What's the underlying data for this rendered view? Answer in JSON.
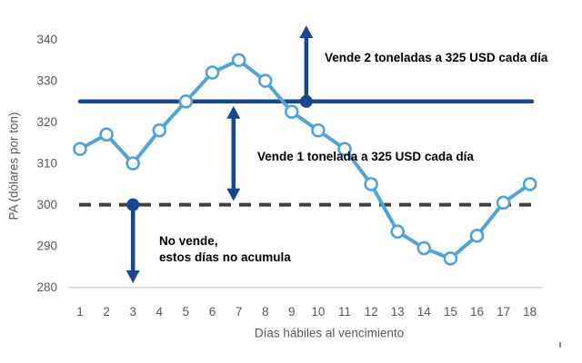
{
  "chart_data": {
    "type": "line",
    "title": "",
    "xlabel": "Días hábiles al vencimiento",
    "ylabel": "PA (dólares por ton)",
    "x": [
      1,
      2,
      3,
      4,
      5,
      6,
      7,
      8,
      9,
      10,
      11,
      12,
      13,
      14,
      15,
      16,
      17,
      18
    ],
    "series": [
      {
        "name": "PA (dólares por ton)",
        "marker": "circle-open",
        "values": [
          313.5,
          317,
          310,
          318,
          325,
          332,
          335,
          330,
          322.5,
          318,
          313.5,
          305,
          293.5,
          289.5,
          287,
          292.5,
          300.5,
          305
        ]
      }
    ],
    "ylim": [
      280,
      340
    ],
    "yticks": [
      280,
      290,
      300,
      310,
      320,
      330,
      340
    ],
    "grid": false,
    "legend": "none",
    "reference_lines": [
      {
        "id": "sell-price-line",
        "value": 325,
        "style": "solid"
      },
      {
        "id": "no-sell-threshold-line",
        "value": 300,
        "style": "dashed"
      }
    ],
    "annotations": {
      "sell_two": {
        "text": "Vende 2 toneladas a 325 USD cada día",
        "arrow": "up",
        "dot_day": 9.55,
        "dot_value": 325
      },
      "sell_one": {
        "text": "Vende 1 tonelada a 325 USD cada día",
        "arrow": "double-vertical",
        "arrow_day": 6.8,
        "arrow_from_value": 325,
        "arrow_to_value": 300
      },
      "no_sell": {
        "line1": "No vende,",
        "line2": "estos días no acumula",
        "arrow": "down",
        "dot_day": 3,
        "dot_value": 300
      }
    },
    "colors": {
      "series_line": "#4FA4D9",
      "marker_fill": "#FFFFFF",
      "navy": "#17478F",
      "dashed_line": "#3F3F3F",
      "axis_text": "#595959",
      "annotation_text": "#000000",
      "baseline": "#D9D9D9"
    }
  }
}
